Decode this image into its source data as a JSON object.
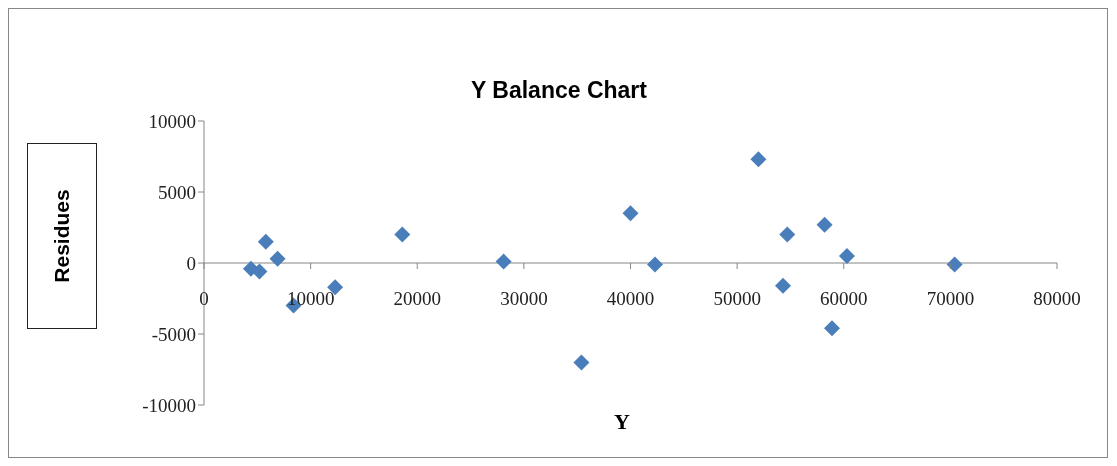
{
  "chart_data": {
    "type": "scatter",
    "title": "Y Balance Chart",
    "xlabel": "Y",
    "ylabel": "Residues",
    "x": [
      4400,
      5200,
      5800,
      6900,
      8400,
      12300,
      18600,
      28100,
      35400,
      40000,
      42300,
      52000,
      54300,
      54700,
      58200,
      58900,
      60300,
      70400
    ],
    "values": [
      -400,
      -600,
      1500,
      300,
      -3000,
      -1700,
      2000,
      100,
      -7000,
      3500,
      -100,
      7300,
      -1600,
      2000,
      2700,
      -4600,
      500,
      -100
    ],
    "color": "#4a7ebb",
    "marker": "diamond",
    "grid": false,
    "legend": false,
    "xlim": [
      0,
      80000
    ],
    "xticks": [
      0,
      10000,
      20000,
      30000,
      40000,
      50000,
      60000,
      70000,
      80000
    ],
    "ylim": [
      -10000,
      10000
    ],
    "yticks": [
      -10000,
      -5000,
      0,
      5000,
      10000
    ]
  }
}
